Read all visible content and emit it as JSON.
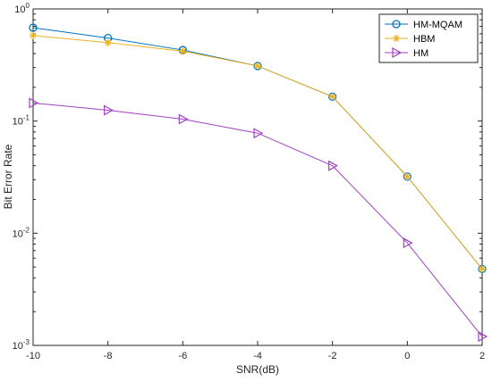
{
  "chart_data": {
    "type": "line",
    "xlabel": "SNR(dB)",
    "ylabel": "Bit Error Rate",
    "x": [
      -10,
      -8,
      -6,
      -4,
      -2,
      0,
      2
    ],
    "xlim": [
      -10,
      2
    ],
    "xticks": [
      "-10",
      "-8",
      "-6",
      "-4",
      "-2",
      "0",
      "2"
    ],
    "yscale": "log",
    "ylim": [
      0.001,
      1
    ],
    "yticks": [
      {
        "value": 1,
        "base": "10",
        "exp": "0"
      },
      {
        "value": 0.1,
        "base": "10",
        "exp": "-1"
      },
      {
        "value": 0.01,
        "base": "10",
        "exp": "-2"
      },
      {
        "value": 0.001,
        "base": "10",
        "exp": "-3"
      }
    ],
    "grid": false,
    "legend_position": "top-right",
    "series": [
      {
        "name": "HM-MQAM",
        "marker": "circle",
        "color": "#0072BD",
        "values": [
          0.68,
          0.55,
          0.43,
          0.31,
          0.165,
          0.032,
          0.0048
        ]
      },
      {
        "name": "HBM",
        "marker": "asterisk",
        "color": "#EDB120",
        "values": [
          0.58,
          0.5,
          0.42,
          0.31,
          0.165,
          0.032,
          0.0048
        ]
      },
      {
        "name": "HM",
        "marker": "triangle-right",
        "color": "#A040C0",
        "values": [
          0.145,
          0.125,
          0.104,
          0.078,
          0.04,
          0.0082,
          0.0012
        ]
      }
    ]
  }
}
